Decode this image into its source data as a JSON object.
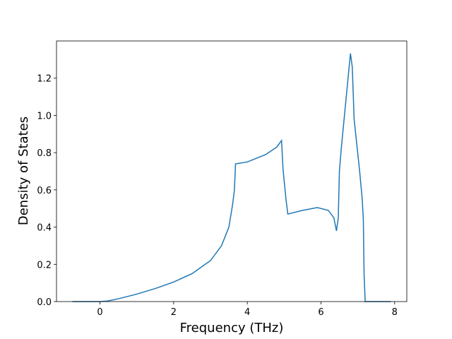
{
  "chart_data": {
    "type": "line",
    "xlabel": "Frequency (THz)",
    "ylabel": "Density of States",
    "x": [
      -0.75,
      0,
      0.2,
      0.5,
      1,
      1.5,
      2,
      2.5,
      3,
      3.3,
      3.5,
      3.6,
      3.65,
      3.68,
      4,
      4.5,
      4.8,
      4.93,
      4.97,
      5.05,
      5.1,
      5.5,
      5.9,
      6.2,
      6.35,
      6.42,
      6.47,
      6.5,
      6.55,
      6.8,
      6.85,
      6.9,
      7.05,
      7.12,
      7.15,
      7.17,
      7.2,
      7.9
    ],
    "series": [
      {
        "color": "#1f77b4",
        "values": [
          0,
          0,
          0.003,
          0.015,
          0.04,
          0.07,
          0.105,
          0.15,
          0.22,
          0.3,
          0.4,
          0.52,
          0.6,
          0.74,
          0.75,
          0.79,
          0.83,
          0.865,
          0.71,
          0.55,
          0.47,
          0.49,
          0.505,
          0.49,
          0.45,
          0.38,
          0.45,
          0.7,
          0.82,
          1.333,
          1.26,
          0.98,
          0.7,
          0.55,
          0.44,
          0.15,
          0,
          0
        ]
      }
    ],
    "xlim": [
      -1.18,
      8.33
    ],
    "ylim": [
      0,
      1.4
    ],
    "xticks": [
      0,
      2,
      4,
      6,
      8
    ],
    "yticks": [
      {
        "value": 0,
        "label": "0.0"
      },
      0.2,
      0.4,
      0.6,
      0.8,
      {
        "value": 1,
        "label": "1.0"
      },
      1.2
    ]
  }
}
